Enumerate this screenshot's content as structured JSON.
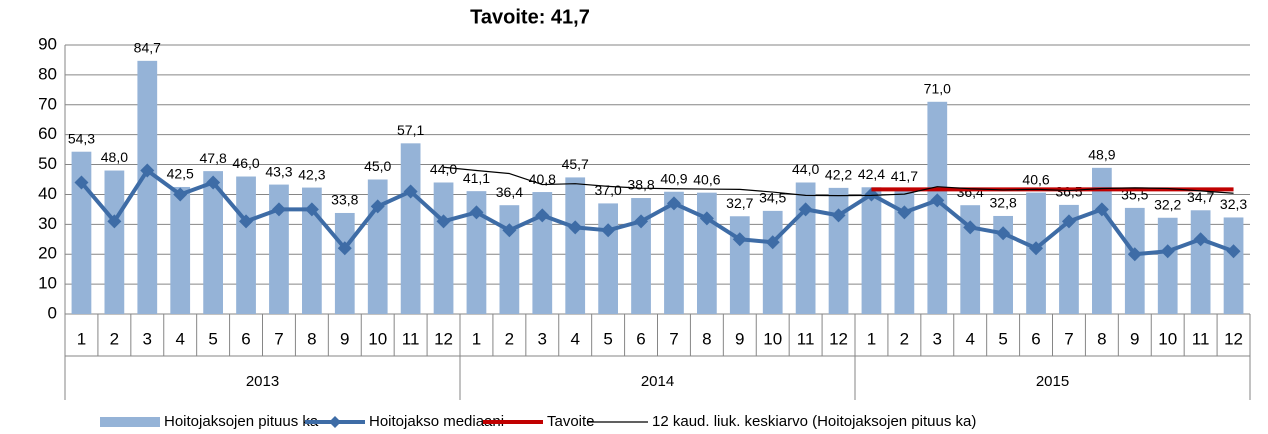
{
  "chart_data": {
    "type": "bar-line",
    "title": "Tavoite: 41,7",
    "categories": [
      "1",
      "2",
      "3",
      "4",
      "5",
      "6",
      "7",
      "8",
      "9",
      "10",
      "11",
      "12",
      "1",
      "2",
      "3",
      "4",
      "5",
      "6",
      "7",
      "8",
      "9",
      "10",
      "11",
      "12",
      "1",
      "2",
      "3",
      "4",
      "5",
      "6",
      "7",
      "8",
      "9",
      "10",
      "11",
      "12"
    ],
    "category_groups": [
      "2013",
      "2014",
      "2015"
    ],
    "ylim": [
      0,
      90
    ],
    "yticks": [
      0,
      10,
      20,
      30,
      40,
      50,
      60,
      70,
      80,
      90
    ],
    "grid": true,
    "legend": "bottom",
    "series": [
      {
        "name": "Hoitojaksojen pituus ka",
        "type": "bar",
        "color": "#95b3d7",
        "values": [
          54.3,
          48.0,
          84.7,
          42.5,
          47.8,
          46.0,
          43.3,
          42.3,
          33.8,
          45.0,
          57.1,
          44.0,
          41.1,
          36.4,
          40.8,
          45.7,
          37.0,
          38.8,
          40.9,
          40.6,
          32.7,
          34.5,
          44.0,
          42.2,
          42.4,
          41.7,
          71.0,
          36.4,
          32.8,
          40.6,
          36.5,
          48.9,
          35.5,
          32.2,
          34.7,
          32.3
        ],
        "value_labels": [
          "54,3",
          "48,0",
          "84,7",
          "42,5",
          "47,8",
          "46,0",
          "43,3",
          "42,3",
          "33,8",
          "45,0",
          "57,1",
          "44,0",
          "41,1",
          "36,4",
          "40,8",
          "45,7",
          "37,0",
          "38,8",
          "40,9",
          "40,6",
          "32,7",
          "34,5",
          "44,0",
          "42,2",
          "42,4",
          "41,7",
          "71,0",
          "36,4",
          "32,8",
          "40,6",
          "36,5",
          "48,9",
          "35,5",
          "32,2",
          "34,7",
          "32,3"
        ]
      },
      {
        "name": "Hoitojakso mediaani",
        "type": "line",
        "color": "#3e6ca6",
        "marker": "diamond",
        "values": [
          44,
          31,
          48,
          40,
          44,
          31,
          35,
          35,
          22,
          36,
          41,
          31,
          34,
          28,
          33,
          29,
          28,
          31,
          37,
          32,
          25,
          24,
          35,
          33,
          40,
          34,
          38,
          29,
          27,
          22,
          31,
          35,
          20,
          21,
          25,
          21
        ]
      },
      {
        "name": "Tavoite",
        "type": "line",
        "color": "#c00000",
        "values": [
          null,
          null,
          null,
          null,
          null,
          null,
          null,
          null,
          null,
          null,
          null,
          null,
          null,
          null,
          null,
          null,
          null,
          null,
          null,
          null,
          null,
          null,
          null,
          null,
          41.7,
          41.7,
          41.7,
          41.7,
          41.7,
          41.7,
          41.7,
          41.7,
          41.7,
          41.7,
          41.7,
          41.7
        ]
      },
      {
        "name": "12 kaud. liuk. keskiarvo (Hoitojaksojen pituus ka)",
        "type": "line",
        "color": "#000000",
        "values": [
          null,
          null,
          null,
          null,
          null,
          null,
          null,
          null,
          null,
          null,
          null,
          49.1,
          48.0,
          47.0,
          43.3,
          43.6,
          42.7,
          42.1,
          41.9,
          41.8,
          41.7,
          40.8,
          39.7,
          39.6,
          39.7,
          40.1,
          42.6,
          41.9,
          41.5,
          41.7,
          41.3,
          42.0,
          42.2,
          42.0,
          41.2,
          40.4
        ]
      }
    ]
  }
}
